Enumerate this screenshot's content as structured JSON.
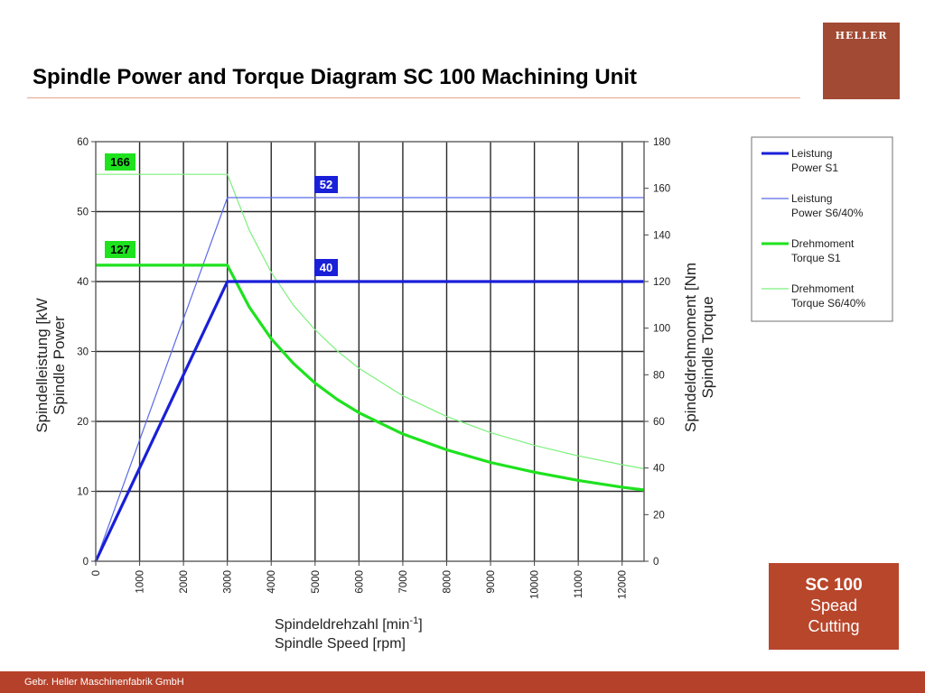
{
  "slide": {
    "title": "Spindle Power and Torque Diagram SC 100 Machining Unit",
    "logo_text": "HELLER",
    "badge": {
      "line1": "SC 100",
      "line2": "Spead",
      "line3": "Cutting"
    },
    "footer": "Gebr. Heller Maschinenfabrik GmbH"
  },
  "colors": {
    "brand": "#b6412a",
    "power_s1": "#1a1fd8",
    "power_s6": "#5a6ae8",
    "torque_s1": "#1ee21e",
    "torque_s6": "#7df07d"
  },
  "chart_data": {
    "type": "line",
    "xlabel": [
      "Spindeldrehzahl [min-1]",
      "Spindle Speed [rpm]"
    ],
    "ylabel": [
      "Spindelleistung [kW",
      "Spindle Power"
    ],
    "y2label": [
      "Spindeldrehmoment [Nm",
      "Spindle Torque"
    ],
    "xlim": [
      0,
      12500
    ],
    "ylim": [
      0,
      60
    ],
    "y2lim": [
      0,
      180
    ],
    "xticks": [
      "0",
      "1000",
      "2000",
      "3000",
      "4000",
      "5000",
      "6000",
      "7000",
      "8000",
      "9000",
      "10000",
      "11000",
      "12000"
    ],
    "yticks": [
      "0",
      "10",
      "20",
      "30",
      "40",
      "50",
      "60"
    ],
    "y2ticks": [
      "0",
      "20",
      "40",
      "60",
      "80",
      "100",
      "120",
      "140",
      "160",
      "180"
    ],
    "grid": true,
    "legend_position": "right",
    "series": [
      {
        "name": "Leistung Power S1",
        "legend": [
          "Leistung",
          "Power S1"
        ],
        "axis": "left",
        "style": "thick",
        "x": [
          0,
          3000,
          12500
        ],
        "y": [
          0,
          40,
          40
        ]
      },
      {
        "name": "Leistung Power S6/40%",
        "legend": [
          "Leistung",
          "Power S6/40%"
        ],
        "axis": "left",
        "style": "thin",
        "x": [
          0,
          3000,
          12500
        ],
        "y": [
          0,
          52,
          52
        ]
      },
      {
        "name": "Drehmoment Torque S1",
        "legend": [
          "Drehmoment",
          "Torque S1"
        ],
        "axis": "right",
        "style": "thick",
        "x": [
          0,
          3000,
          3500,
          4000,
          4500,
          5000,
          5500,
          6000,
          7000,
          8000,
          9000,
          10000,
          11000,
          12000,
          12500
        ],
        "y": [
          127,
          127,
          109,
          95.5,
          85,
          76.4,
          69.5,
          63.7,
          54.6,
          47.8,
          42.4,
          38.2,
          34.7,
          31.8,
          30.6
        ]
      },
      {
        "name": "Drehmoment Torque S6/40%",
        "legend": [
          "Drehmoment",
          "Torque S6/40%"
        ],
        "axis": "right",
        "style": "thin",
        "x": [
          0,
          3000,
          3500,
          4000,
          4500,
          5000,
          5500,
          6000,
          7000,
          8000,
          9000,
          10000,
          11000,
          12000,
          12500
        ],
        "y": [
          166,
          166,
          142,
          124,
          110,
          99.3,
          90.3,
          82.8,
          71,
          62.1,
          55.2,
          49.7,
          45.2,
          41.4,
          39.7
        ]
      }
    ],
    "annotations": [
      {
        "text": "166",
        "series": "Drehmoment Torque S6/40%"
      },
      {
        "text": "127",
        "series": "Drehmoment Torque S1"
      },
      {
        "text": "52",
        "series": "Leistung Power S6/40%"
      },
      {
        "text": "40",
        "series": "Leistung Power S1"
      }
    ]
  }
}
